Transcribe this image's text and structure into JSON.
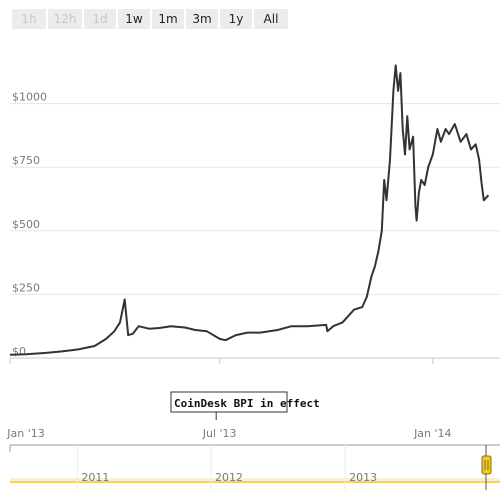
{
  "range_selector": {
    "buttons": [
      {
        "label": "1h",
        "state": "disabled"
      },
      {
        "label": "12h",
        "state": "disabled"
      },
      {
        "label": "1d",
        "state": "disabled"
      },
      {
        "label": "1w",
        "state": "enabled"
      },
      {
        "label": "1m",
        "state": "enabled"
      },
      {
        "label": "3m",
        "state": "enabled"
      },
      {
        "label": "1y",
        "state": "enabled"
      },
      {
        "label": "All",
        "state": "enabled"
      }
    ]
  },
  "chart_data": {
    "type": "line",
    "title": "",
    "xlabel": "",
    "ylabel": "",
    "ylim": [
      0,
      1250
    ],
    "y_ticks": [
      {
        "value": 0,
        "label": "$0"
      },
      {
        "value": 250,
        "label": "$250"
      },
      {
        "value": 500,
        "label": "$500"
      },
      {
        "value": 750,
        "label": "$750"
      },
      {
        "value": 1000,
        "label": "$1000"
      }
    ],
    "x_range": [
      "2013-01-01",
      "2014-02-28"
    ],
    "x_ticks": [
      {
        "date": "2013-01-01",
        "label": "Jan '13"
      },
      {
        "date": "2013-07-01",
        "label": "Jul '13"
      },
      {
        "date": "2014-01-01",
        "label": "Jan '14"
      }
    ],
    "grid": true,
    "line_color": "#333333",
    "series": [
      {
        "x": [
          "2013-01-01",
          "2013-01-15",
          "2013-02-01",
          "2013-02-15",
          "2013-03-01",
          "2013-03-15",
          "2013-03-25",
          "2013-04-01",
          "2013-04-06",
          "2013-04-10",
          "2013-04-13",
          "2013-04-17",
          "2013-04-22",
          "2013-05-01",
          "2013-05-10",
          "2013-05-20",
          "2013-06-01",
          "2013-06-10",
          "2013-06-20",
          "2013-07-01",
          "2013-07-06",
          "2013-07-15",
          "2013-07-25",
          "2013-08-05",
          "2013-08-20",
          "2013-09-01",
          "2013-09-15",
          "2013-10-01",
          "2013-10-02",
          "2013-10-07",
          "2013-10-15",
          "2013-10-25",
          "2013-11-01",
          "2013-11-05",
          "2013-11-09",
          "2013-11-12",
          "2013-11-15",
          "2013-11-18",
          "2013-11-20",
          "2013-11-22",
          "2013-11-25",
          "2013-11-28",
          "2013-11-30",
          "2013-12-02",
          "2013-12-04",
          "2013-12-06",
          "2013-12-08",
          "2013-12-10",
          "2013-12-12",
          "2013-12-15",
          "2013-12-17",
          "2013-12-18",
          "2013-12-20",
          "2013-12-22",
          "2013-12-25",
          "2013-12-28",
          "2014-01-01",
          "2014-01-05",
          "2014-01-08",
          "2014-01-12",
          "2014-01-15",
          "2014-01-20",
          "2014-01-25",
          "2014-01-30",
          "2014-02-03",
          "2014-02-07",
          "2014-02-10",
          "2014-02-12",
          "2014-02-14",
          "2014-02-18"
        ],
        "values": [
          13,
          15,
          20,
          26,
          34,
          47,
          75,
          105,
          140,
          230,
          90,
          95,
          125,
          115,
          118,
          125,
          120,
          110,
          105,
          75,
          70,
          90,
          100,
          100,
          110,
          125,
          125,
          130,
          105,
          125,
          140,
          190,
          200,
          240,
          320,
          360,
          420,
          500,
          700,
          620,
          780,
          1050,
          1150,
          1050,
          1120,
          900,
          800,
          950,
          820,
          870,
          600,
          540,
          650,
          700,
          680,
          750,
          800,
          900,
          850,
          900,
          880,
          920,
          850,
          880,
          820,
          840,
          780,
          690,
          620,
          640
        ]
      }
    ]
  },
  "flag": {
    "text": "CoinDesk BPI in effect",
    "date": "2013-06-28"
  },
  "navigator": {
    "labels": [
      {
        "date": "2011-01-01",
        "label": "2011"
      },
      {
        "date": "2012-01-01",
        "label": "2012"
      },
      {
        "date": "2013-01-01",
        "label": "2013"
      }
    ],
    "range": [
      "2010-07-01",
      "2014-02-28"
    ],
    "handle_icon": "drag-handle",
    "accent_color": "#f0c92f"
  }
}
